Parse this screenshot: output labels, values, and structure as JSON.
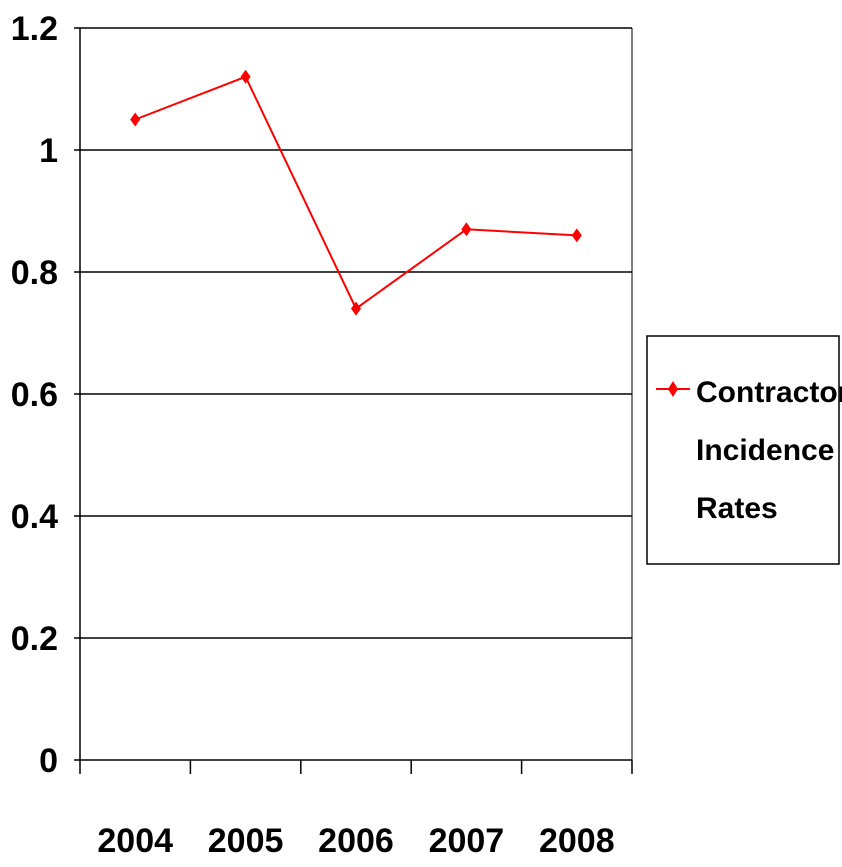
{
  "chart_data": {
    "type": "line",
    "title": "",
    "xlabel": "",
    "ylabel": "",
    "categories": [
      "2004",
      "2005",
      "2006",
      "2007",
      "2008"
    ],
    "series": [
      {
        "name": "Contractor Incidence Rates",
        "values": [
          1.05,
          1.12,
          0.74,
          0.87,
          0.86
        ],
        "color": "#ff0000",
        "marker": "diamond"
      }
    ],
    "ylim": [
      0,
      1.2
    ],
    "yticks": [
      "0",
      "0.2",
      "0.4",
      "0.6",
      "0.8",
      "1",
      "1.2"
    ],
    "grid": "horizontal",
    "legend": {
      "position": "right",
      "lines": [
        "Contractor",
        "Incidence",
        "Rates"
      ]
    }
  }
}
